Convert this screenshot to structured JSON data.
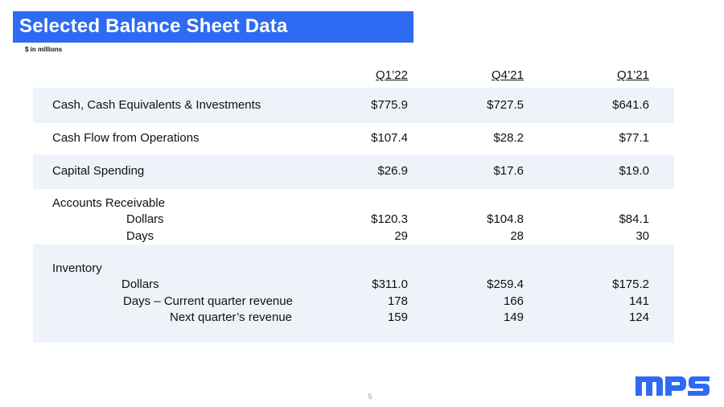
{
  "slide": {
    "title": "Selected Balance Sheet Data",
    "subtitle": "$ in millions",
    "page_number": "5",
    "brand_color": "#2F6BF2",
    "band_color": "#EEF3FA",
    "logo_icon": "mps-logo"
  },
  "columns": [
    "Q1’22",
    "Q4’21",
    "Q1’21"
  ],
  "rows": {
    "cash": {
      "label": "Cash, Cash Equivalents & Investments",
      "values": [
        "$775.9",
        "$727.5",
        "$641.6"
      ]
    },
    "cfo": {
      "label": "Cash Flow from Operations",
      "values": [
        "$107.4",
        "$28.2",
        "$77.1"
      ]
    },
    "capex": {
      "label": "Capital Spending",
      "values": [
        "$26.9",
        "$17.6",
        "$19.0"
      ]
    },
    "ar": {
      "label": "Accounts Receivable",
      "dollars": {
        "label": "Dollars",
        "values": [
          "$120.3",
          "$104.8",
          "$84.1"
        ]
      },
      "days": {
        "label": "Days",
        "values": [
          "29",
          "28",
          "30"
        ]
      }
    },
    "inventory": {
      "label": "Inventory",
      "dollars": {
        "label": "Dollars",
        "values": [
          "$311.0",
          "$259.4",
          "$175.2"
        ]
      },
      "days_current": {
        "label": "Days – Current quarter revenue",
        "values": [
          "178",
          "166",
          "141"
        ]
      },
      "days_next": {
        "label": "Next quarter’s revenue",
        "values": [
          "159",
          "149",
          "124"
        ]
      }
    }
  }
}
